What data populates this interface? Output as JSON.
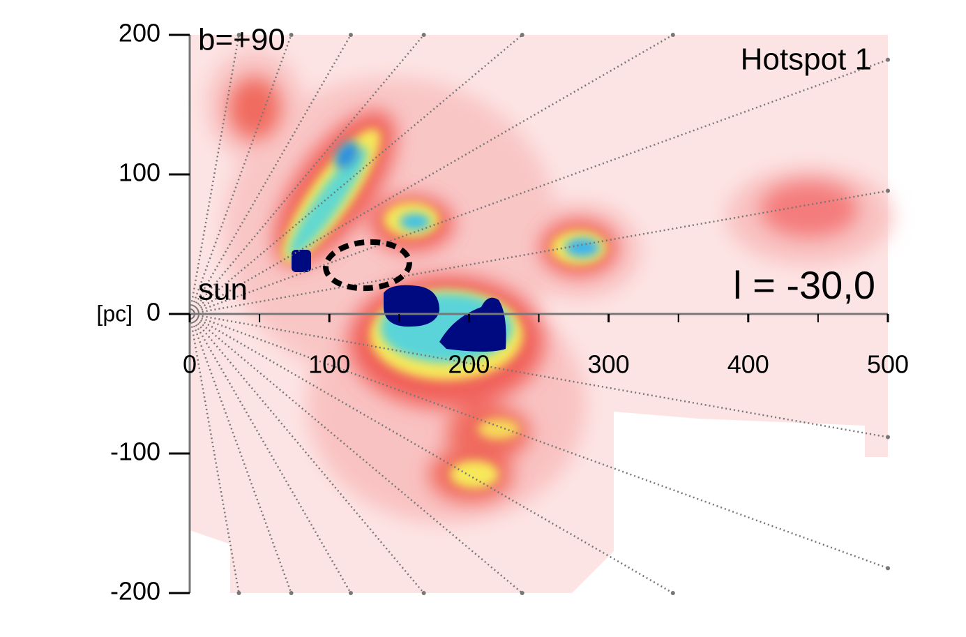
{
  "chart_data": {
    "type": "heatmap",
    "title": "Hotspot 1",
    "annotations": [
      "b=+90",
      "l = -30,0",
      "sun"
    ],
    "ylabel": "[pc]",
    "xlim": [
      0,
      500
    ],
    "ylim": [
      -200,
      200
    ],
    "xticks": [
      0,
      100,
      200,
      300,
      400,
      500
    ],
    "xminorticks": [
      50,
      150,
      250,
      350,
      450
    ],
    "yticks": [
      -200,
      -100,
      0,
      100,
      200
    ]
  }
}
